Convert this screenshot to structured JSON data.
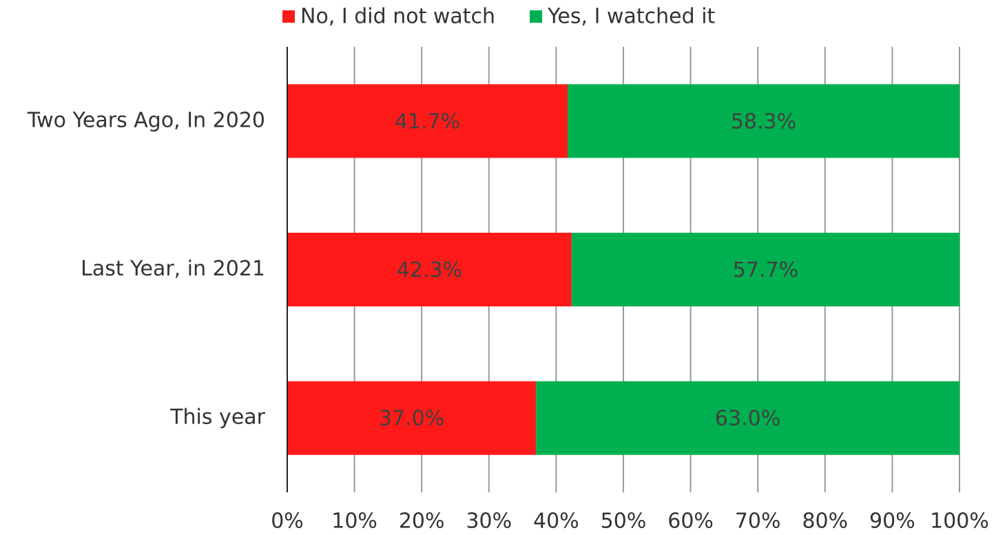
{
  "chart_data": {
    "type": "stacked-bar-horizontal",
    "categories": [
      "Two Years Ago, In 2020",
      "Last Year, in 2021",
      "This year"
    ],
    "series": [
      {
        "name": "No, I did not watch",
        "color": "#ff1a1a",
        "values": [
          41.7,
          42.3,
          37.0
        ],
        "value_labels": [
          "41.7%",
          "42.3%",
          "37.0%"
        ]
      },
      {
        "name": "Yes, I watched it",
        "color": "#00b050",
        "values": [
          58.3,
          57.7,
          63.0
        ],
        "value_labels": [
          "58.3%",
          "57.7%",
          "63.0%"
        ]
      }
    ],
    "xlim": [
      0,
      100
    ],
    "xticks": [
      {
        "value": 0,
        "label": "0%"
      },
      {
        "value": 10,
        "label": "10%"
      },
      {
        "value": 20,
        "label": "20%"
      },
      {
        "value": 30,
        "label": "30%"
      },
      {
        "value": 40,
        "label": "40%"
      },
      {
        "value": 50,
        "label": "50%"
      },
      {
        "value": 60,
        "label": "60%"
      },
      {
        "value": 70,
        "label": "70%"
      },
      {
        "value": 80,
        "label": "80%"
      },
      {
        "value": 90,
        "label": "90%"
      },
      {
        "value": 100,
        "label": "100%"
      }
    ],
    "grid": true,
    "legend": "top"
  }
}
